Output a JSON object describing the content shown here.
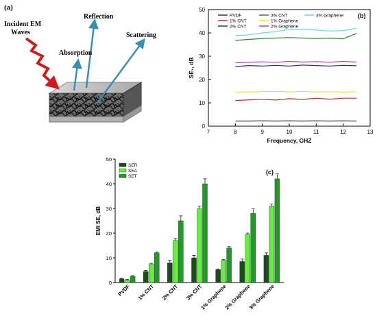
{
  "panel_a": {
    "panel_label": "(a)",
    "incident_label_line1": "Incident EM",
    "incident_label_line2": "Waves",
    "reflection_label": "Reflection",
    "absorption_label": "Absorption",
    "scattering_label": "Scattering",
    "colors": {
      "incident": "#c81e1e",
      "arrows": "#3a8fb0",
      "slab_top": "#c8c8c8",
      "slab_mesh": "#1a1a1a"
    }
  },
  "panel_b": {
    "panel_label": "(b)"
  },
  "panel_c": {
    "panel_label": "(c)"
  },
  "chart_data": [
    {
      "type": "line",
      "xlabel": "Frequency, GHZ",
      "ylabel": "SE₁, dB",
      "xlim": [
        7,
        13
      ],
      "ylim": [
        0,
        50
      ],
      "xticks": [
        7,
        8,
        9,
        10,
        11,
        12,
        13
      ],
      "yticks": [
        0,
        10,
        20,
        30,
        40,
        50
      ],
      "legend": "top",
      "x": [
        8.0,
        8.5,
        9.0,
        9.5,
        10.0,
        10.5,
        11.0,
        11.5,
        12.0,
        12.5
      ],
      "series": [
        {
          "name": "PVDF",
          "color": "#333333",
          "values": [
            2.2,
            2.2,
            2.3,
            2.2,
            2.3,
            2.2,
            2.3,
            2.2,
            2.3,
            2.2
          ]
        },
        {
          "name": "1% CNT",
          "color": "#b03030",
          "values": [
            11.0,
            11.3,
            11.6,
            11.2,
            11.8,
            11.5,
            12.0,
            11.6,
            12.0,
            12.0
          ]
        },
        {
          "name": "2% CNT",
          "color": "#2a2a9a",
          "values": [
            25.6,
            26.0,
            25.8,
            26.1,
            25.8,
            26.2,
            26.0,
            25.8,
            26.1,
            25.9
          ]
        },
        {
          "name": "3% CNT",
          "color": "#2e7d32",
          "values": [
            36.8,
            37.2,
            37.6,
            37.8,
            38.0,
            37.8,
            37.6,
            37.8,
            37.5,
            39.8
          ]
        },
        {
          "name": "1% Graphene",
          "color": "#e6e640",
          "values": [
            14.6,
            14.7,
            14.8,
            14.9,
            14.7,
            14.9,
            14.7,
            14.8,
            14.6,
            14.8
          ]
        },
        {
          "name": "2% Graphene",
          "color": "#b040b0",
          "values": [
            27.2,
            27.4,
            27.6,
            27.4,
            27.8,
            27.5,
            27.7,
            27.4,
            27.8,
            27.5
          ]
        },
        {
          "name": "3% Graphene",
          "color": "#66d9d9",
          "values": [
            38.8,
            39.2,
            40.0,
            40.6,
            41.4,
            41.6,
            41.2,
            40.8,
            41.0,
            42.0
          ]
        }
      ]
    },
    {
      "type": "bar",
      "xlabel": "",
      "ylabel": "EMI SE, dB",
      "ylim": [
        0,
        50
      ],
      "yticks": [
        0,
        10,
        20,
        30,
        40,
        50
      ],
      "legend": "top-left",
      "categories": [
        "PVDF",
        "1% CNT",
        "2% CNT",
        "3% CNT",
        "1% Graphene",
        "2% Graphene",
        "3% Graphene"
      ],
      "series": [
        {
          "name": "SER",
          "color": "#1b4d1b",
          "values": [
            1.5,
            4.5,
            8.0,
            10.0,
            5.2,
            8.5,
            11.0
          ],
          "errors": [
            0.3,
            0.4,
            1.0,
            1.0,
            0.3,
            1.0,
            1.0
          ]
        },
        {
          "name": "SEA",
          "color": "#66ee44",
          "values": [
            1.0,
            7.5,
            17.0,
            30.0,
            9.0,
            19.5,
            31.0
          ],
          "errors": [
            0.2,
            0.3,
            0.8,
            1.0,
            0.3,
            0.5,
            0.8
          ]
        },
        {
          "name": "SET",
          "color": "#22992a",
          "values": [
            2.5,
            12.0,
            25.0,
            40.0,
            14.0,
            28.0,
            42.0
          ],
          "errors": [
            0.3,
            0.4,
            2.0,
            2.0,
            0.5,
            1.8,
            2.0
          ]
        }
      ]
    }
  ]
}
